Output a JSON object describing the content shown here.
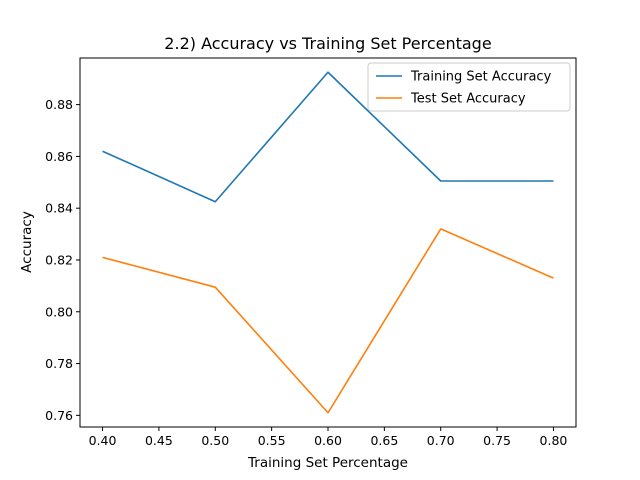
{
  "chart_data": {
    "type": "line",
    "title": "2.2) Accuracy vs Training Set Percentage",
    "xlabel": "Training Set Percentage",
    "ylabel": "Accuracy",
    "x": [
      0.4,
      0.5,
      0.6,
      0.7,
      0.8
    ],
    "xlim": [
      0.38,
      0.82
    ],
    "ylim": [
      0.7555,
      0.898
    ],
    "xticks": [
      0.4,
      0.45,
      0.5,
      0.55,
      0.6,
      0.65,
      0.7,
      0.75,
      0.8
    ],
    "xtick_labels": [
      "0.40",
      "0.45",
      "0.50",
      "0.55",
      "0.60",
      "0.65",
      "0.70",
      "0.75",
      "0.80"
    ],
    "yticks": [
      0.76,
      0.78,
      0.8,
      0.82,
      0.84,
      0.86,
      0.88
    ],
    "ytick_labels": [
      "0.76",
      "0.78",
      "0.80",
      "0.82",
      "0.84",
      "0.86",
      "0.88"
    ],
    "grid": false,
    "legend_position": "top-right",
    "series": [
      {
        "name": "Training Set Accuracy",
        "color": "#1f77b4",
        "values": [
          0.862,
          0.8425,
          0.8925,
          0.8505,
          0.8505
        ]
      },
      {
        "name": "Test Set Accuracy",
        "color": "#ff7f0e",
        "values": [
          0.821,
          0.8095,
          0.761,
          0.832,
          0.813
        ]
      }
    ]
  }
}
